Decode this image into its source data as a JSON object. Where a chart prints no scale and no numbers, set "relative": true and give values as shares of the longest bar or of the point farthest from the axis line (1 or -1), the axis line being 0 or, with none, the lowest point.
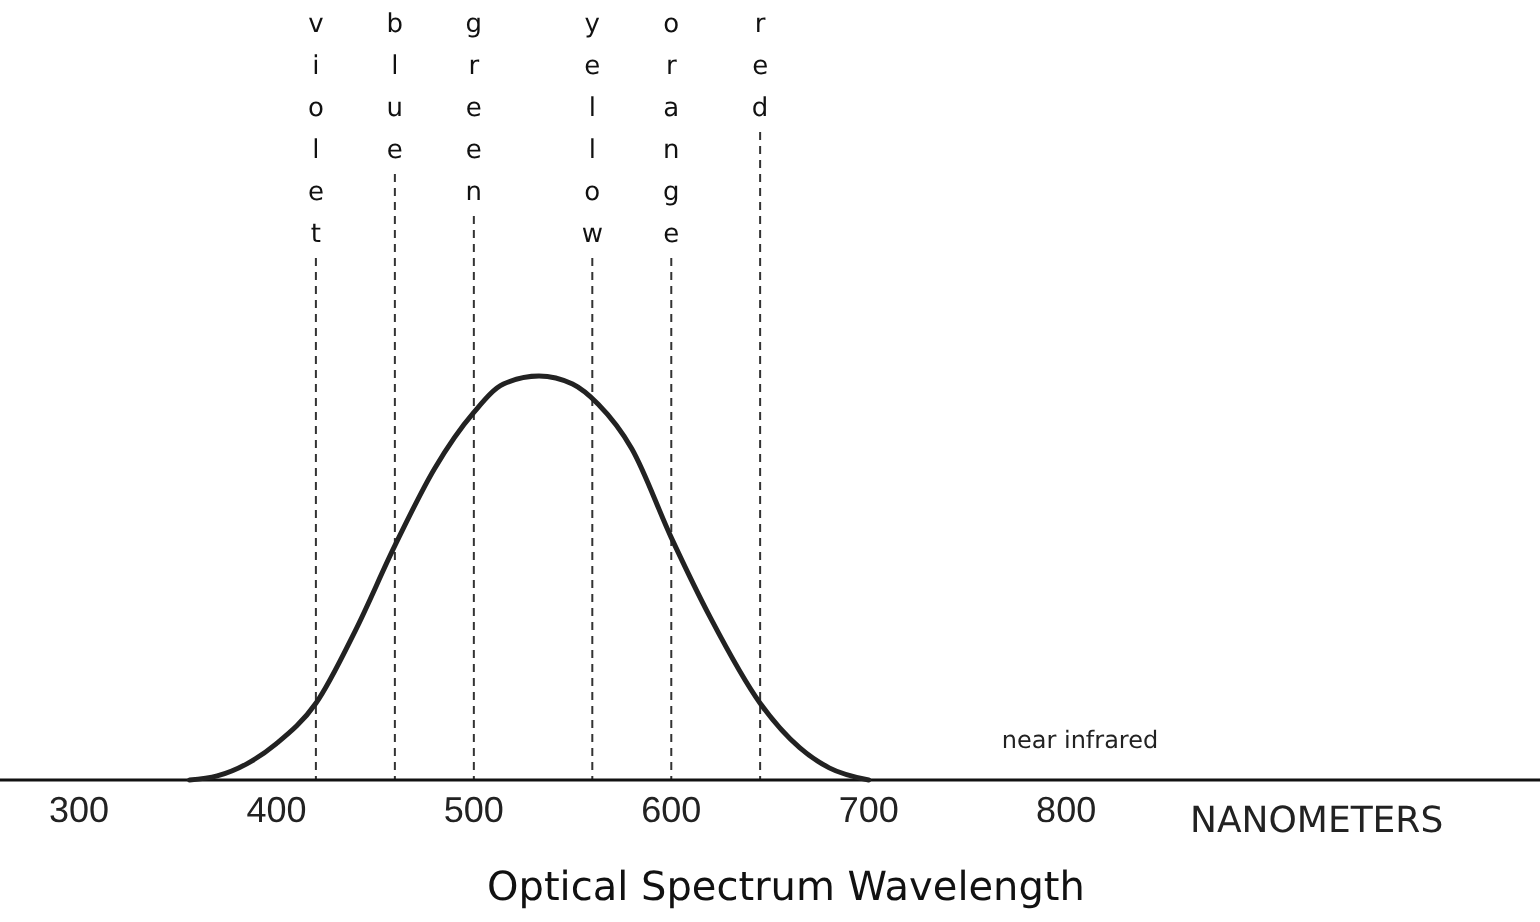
{
  "chart_data": {
    "type": "line",
    "relative": true,
    "xlabel": "Optical Spectrum Wavelength",
    "annotations": [
      "NANOMETERS",
      "near infrared"
    ],
    "x": [
      356,
      370,
      385,
      400,
      420,
      440,
      460,
      480,
      500,
      515,
      533,
      550,
      563,
      580,
      600,
      620,
      645,
      665,
      680,
      700
    ],
    "series": [
      {
        "color": "#222222",
        "values": [
          0,
          0.01,
          0.04,
          0.09,
          0.19,
          0.37,
          0.58,
          0.77,
          0.91,
          0.98,
          1,
          0.98,
          0.93,
          0.82,
          0.6,
          0.4,
          0.19,
          0.08,
          0.03,
          0
        ]
      }
    ],
    "xlim": [
      260,
      1040
    ],
    "xticks": [
      300,
      400,
      500,
      600,
      700,
      800
    ],
    "line_style": "solid",
    "grid": false,
    "ref_lines": [
      {
        "axis": "x",
        "value": 420,
        "label": "violet",
        "line_style": "dashed"
      },
      {
        "axis": "x",
        "value": 460,
        "label": "blue",
        "line_style": "dashed"
      },
      {
        "axis": "x",
        "value": 500,
        "label": "green",
        "line_style": "dashed"
      },
      {
        "axis": "x",
        "value": 560,
        "label": "yellow",
        "line_style": "dashed"
      },
      {
        "axis": "x",
        "value": 600,
        "label": "orange",
        "line_style": "dashed"
      },
      {
        "axis": "x",
        "value": 645,
        "label": "red",
        "line_style": "dashed"
      }
    ]
  }
}
